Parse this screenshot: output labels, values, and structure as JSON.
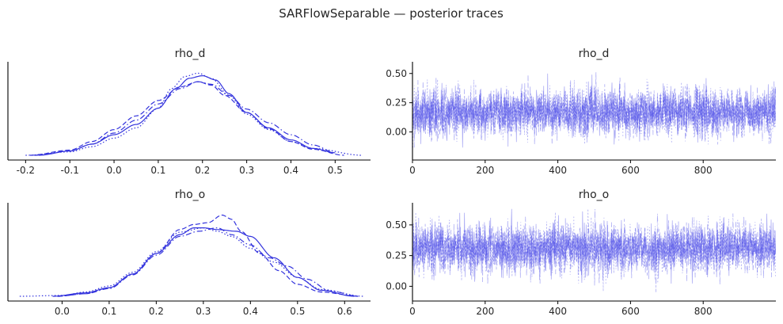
{
  "figure_title": "SARFlowSeparable — posterior traces",
  "colors": {
    "line": "#3333dd",
    "trace": "#4a4ae6"
  },
  "chart_data": [
    {
      "type": "line",
      "panel": "density",
      "variable": "rho_d",
      "title": "rho_d",
      "xlim": [
        -0.24,
        0.58
      ],
      "ylim": [
        0,
        1
      ],
      "xticks": [
        "-0.2",
        "-0.1",
        "0.0",
        "0.1",
        "0.2",
        "0.3",
        "0.4",
        "0.5"
      ],
      "xtick_values": [
        -0.2,
        -0.1,
        0.0,
        0.1,
        0.2,
        0.3,
        0.4,
        0.5
      ],
      "yticks": [],
      "chains": [
        {
          "style": "solid",
          "x": [
            -0.17,
            -0.1,
            -0.05,
            0.0,
            0.05,
            0.1,
            0.14,
            0.17,
            0.2,
            0.23,
            0.26,
            0.3,
            0.35,
            0.4,
            0.45,
            0.5
          ],
          "y": [
            0.0,
            0.05,
            0.13,
            0.24,
            0.36,
            0.55,
            0.78,
            0.9,
            0.93,
            0.88,
            0.72,
            0.5,
            0.32,
            0.18,
            0.08,
            0.03
          ]
        },
        {
          "style": "dashed",
          "x": [
            -0.19,
            -0.1,
            -0.05,
            0.0,
            0.05,
            0.1,
            0.15,
            0.19,
            0.22,
            0.25,
            0.3,
            0.35,
            0.4,
            0.45,
            0.52
          ],
          "y": [
            0.0,
            0.06,
            0.16,
            0.3,
            0.46,
            0.64,
            0.8,
            0.86,
            0.82,
            0.7,
            0.5,
            0.31,
            0.16,
            0.07,
            0.0
          ]
        },
        {
          "style": "dashdot",
          "x": [
            -0.18,
            -0.1,
            -0.05,
            0.0,
            0.05,
            0.1,
            0.15,
            0.19,
            0.22,
            0.26,
            0.3,
            0.35,
            0.4,
            0.45,
            0.5
          ],
          "y": [
            0.0,
            0.05,
            0.13,
            0.26,
            0.41,
            0.6,
            0.78,
            0.86,
            0.83,
            0.7,
            0.54,
            0.38,
            0.24,
            0.12,
            0.03
          ]
        },
        {
          "style": "dotted",
          "x": [
            -0.2,
            -0.1,
            -0.05,
            0.0,
            0.05,
            0.1,
            0.13,
            0.16,
            0.19,
            0.22,
            0.26,
            0.3,
            0.35,
            0.4,
            0.45,
            0.56
          ],
          "y": [
            0.0,
            0.04,
            0.1,
            0.2,
            0.32,
            0.55,
            0.78,
            0.92,
            0.96,
            0.9,
            0.7,
            0.48,
            0.3,
            0.16,
            0.08,
            0.0
          ]
        }
      ]
    },
    {
      "type": "line",
      "panel": "trace",
      "variable": "rho_d",
      "title": "rho_d",
      "xlim": [
        0,
        1000
      ],
      "ylim": [
        -0.24,
        0.6
      ],
      "xticks": [
        "0",
        "200",
        "400",
        "600",
        "800"
      ],
      "xtick_values": [
        0,
        200,
        400,
        600,
        800
      ],
      "yticks": [
        "0.00",
        "0.25",
        "0.50"
      ],
      "ytick_values": [
        0.0,
        0.25,
        0.5
      ],
      "draws": 1000,
      "chains": 4,
      "mean": 0.17,
      "sd": 0.1,
      "min": -0.22,
      "max": 0.55
    },
    {
      "type": "line",
      "panel": "density",
      "variable": "rho_o",
      "title": "rho_o",
      "xlim": [
        -0.115,
        0.655
      ],
      "ylim": [
        0,
        1
      ],
      "xticks": [
        "0.0",
        "0.1",
        "0.2",
        "0.3",
        "0.4",
        "0.5",
        "0.6"
      ],
      "xtick_values": [
        0.0,
        0.1,
        0.2,
        0.3,
        0.4,
        0.5,
        0.6
      ],
      "yticks": [],
      "chains": [
        {
          "style": "solid",
          "x": [
            -0.02,
            0.05,
            0.1,
            0.15,
            0.2,
            0.25,
            0.28,
            0.3,
            0.33,
            0.37,
            0.4,
            0.45,
            0.5,
            0.55,
            0.62
          ],
          "y": [
            0.0,
            0.04,
            0.1,
            0.26,
            0.5,
            0.72,
            0.8,
            0.8,
            0.78,
            0.76,
            0.7,
            0.45,
            0.22,
            0.07,
            0.0
          ]
        },
        {
          "style": "dashed",
          "x": [
            -0.01,
            0.05,
            0.1,
            0.15,
            0.2,
            0.25,
            0.28,
            0.31,
            0.34,
            0.36,
            0.38,
            0.42,
            0.46,
            0.5,
            0.55,
            0.63
          ],
          "y": [
            0.0,
            0.03,
            0.1,
            0.26,
            0.5,
            0.78,
            0.84,
            0.86,
            0.95,
            0.9,
            0.76,
            0.5,
            0.3,
            0.14,
            0.05,
            0.0
          ]
        },
        {
          "style": "dashdot",
          "x": [
            -0.01,
            0.05,
            0.1,
            0.15,
            0.2,
            0.25,
            0.29,
            0.33,
            0.36,
            0.4,
            0.44,
            0.48,
            0.52,
            0.57,
            0.63
          ],
          "y": [
            0.0,
            0.03,
            0.09,
            0.25,
            0.48,
            0.7,
            0.76,
            0.8,
            0.72,
            0.6,
            0.45,
            0.35,
            0.2,
            0.06,
            0.0
          ]
        },
        {
          "style": "dotted",
          "x": [
            -0.09,
            0.0,
            0.05,
            0.1,
            0.15,
            0.2,
            0.25,
            0.3,
            0.33,
            0.36,
            0.4,
            0.45,
            0.5,
            0.55,
            0.64
          ],
          "y": [
            0.0,
            0.01,
            0.05,
            0.12,
            0.28,
            0.52,
            0.75,
            0.8,
            0.76,
            0.7,
            0.56,
            0.4,
            0.22,
            0.08,
            0.0
          ]
        }
      ]
    },
    {
      "type": "line",
      "panel": "trace",
      "variable": "rho_o",
      "title": "rho_o",
      "xlim": [
        0,
        1000
      ],
      "ylim": [
        -0.12,
        0.68
      ],
      "xticks": [
        "0",
        "200",
        "400",
        "600",
        "800"
      ],
      "xtick_values": [
        0,
        200,
        400,
        600,
        800
      ],
      "yticks": [
        "0.00",
        "0.25",
        "0.50"
      ],
      "ytick_values": [
        0.0,
        0.25,
        0.5
      ],
      "draws": 1000,
      "chains": 4,
      "mean": 0.31,
      "sd": 0.1,
      "min": -0.1,
      "max": 0.63
    }
  ]
}
